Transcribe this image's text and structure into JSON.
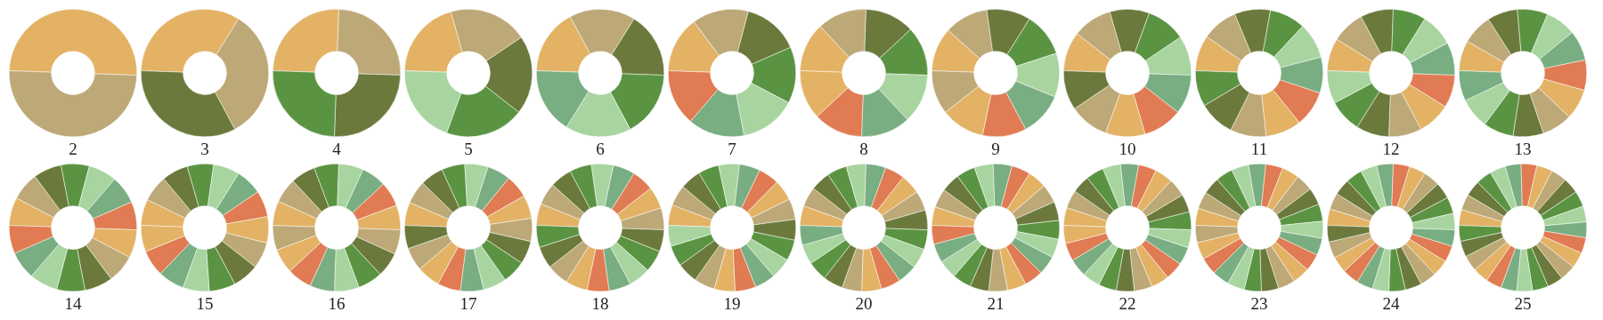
{
  "chart_data": [
    {
      "type": "donut",
      "title": "2",
      "categories": [
        null,
        null
      ],
      "values": [
        50,
        50
      ],
      "colors": [
        "#e3b264",
        "#bda877"
      ]
    },
    {
      "type": "donut",
      "title": "3",
      "categories": [
        null,
        null,
        null
      ],
      "values": [
        33.33,
        33.33,
        33.33
      ],
      "colors": [
        "#e3b264",
        "#bda877",
        "#6b7a3c"
      ]
    },
    {
      "type": "donut",
      "title": "4",
      "categories": [
        null,
        null,
        null,
        null
      ],
      "values": [
        25,
        25,
        25,
        25
      ],
      "colors": [
        "#e3b264",
        "#bda877",
        "#6b7a3c",
        "#5a9442"
      ]
    },
    {
      "type": "donut",
      "title": "5",
      "categories": [
        null,
        null,
        null,
        null,
        null
      ],
      "values": [
        20,
        20,
        20,
        20,
        20
      ],
      "colors": [
        "#e3b264",
        "#bda877",
        "#6b7a3c",
        "#5a9442",
        "#a8d4a0"
      ]
    },
    {
      "type": "donut",
      "title": "6",
      "categories": [
        null,
        null,
        null,
        null,
        null,
        null
      ],
      "values": [
        16.67,
        16.67,
        16.67,
        16.67,
        16.67,
        16.67
      ],
      "colors": [
        "#e3b264",
        "#bda877",
        "#6b7a3c",
        "#5a9442",
        "#a8d4a0",
        "#78ae82"
      ]
    },
    {
      "type": "donut",
      "title": "7",
      "categories": [
        null,
        null,
        null,
        null,
        null,
        null,
        null
      ],
      "values": [
        14.29,
        14.29,
        14.29,
        14.29,
        14.29,
        14.29,
        14.29
      ],
      "colors": [
        "#e3b264",
        "#bda877",
        "#6b7a3c",
        "#5a9442",
        "#a8d4a0",
        "#78ae82",
        "#e07b53"
      ]
    },
    {
      "type": "donut",
      "title": "8",
      "categories": [
        null,
        null,
        null,
        null,
        null,
        null,
        null,
        null
      ],
      "values": [
        12.5,
        12.5,
        12.5,
        12.5,
        12.5,
        12.5,
        12.5,
        12.5
      ],
      "colors": [
        "#e3b264",
        "#bda877",
        "#6b7a3c",
        "#5a9442",
        "#a8d4a0",
        "#78ae82",
        "#e07b53",
        "#e3b264"
      ]
    },
    {
      "type": "donut",
      "title": "9",
      "categories": [
        null,
        null,
        null,
        null,
        null,
        null,
        null,
        null,
        null
      ],
      "values": [
        11.11,
        11.11,
        11.11,
        11.11,
        11.11,
        11.11,
        11.11,
        11.11,
        11.11
      ],
      "colors": [
        "#e3b264",
        "#bda877",
        "#6b7a3c",
        "#5a9442",
        "#a8d4a0",
        "#78ae82",
        "#e07b53",
        "#e3b264",
        "#bda877"
      ]
    },
    {
      "type": "donut",
      "title": "10",
      "categories": [
        null,
        null,
        null,
        null,
        null,
        null,
        null,
        null,
        null,
        null
      ],
      "values": [
        10,
        10,
        10,
        10,
        10,
        10,
        10,
        10,
        10,
        10
      ],
      "colors": [
        "#e3b264",
        "#bda877",
        "#6b7a3c",
        "#5a9442",
        "#a8d4a0",
        "#78ae82",
        "#e07b53",
        "#e3b264",
        "#bda877",
        "#6b7a3c"
      ]
    },
    {
      "type": "donut",
      "title": "11",
      "categories": [
        null,
        null,
        null,
        null,
        null,
        null,
        null,
        null,
        null,
        null,
        null
      ],
      "values": [
        9.09,
        9.09,
        9.09,
        9.09,
        9.09,
        9.09,
        9.09,
        9.09,
        9.09,
        9.09,
        9.09
      ],
      "colors": [
        "#e3b264",
        "#bda877",
        "#6b7a3c",
        "#5a9442",
        "#a8d4a0",
        "#78ae82",
        "#e07b53",
        "#e3b264",
        "#bda877",
        "#6b7a3c",
        "#5a9442"
      ]
    },
    {
      "type": "donut",
      "title": "12",
      "categories": [
        null,
        null,
        null,
        null,
        null,
        null,
        null,
        null,
        null,
        null,
        null,
        null
      ],
      "values": [
        8.33,
        8.33,
        8.33,
        8.33,
        8.33,
        8.33,
        8.33,
        8.33,
        8.33,
        8.33,
        8.33,
        8.33
      ],
      "colors": [
        "#e3b264",
        "#bda877",
        "#6b7a3c",
        "#5a9442",
        "#a8d4a0",
        "#78ae82",
        "#e07b53",
        "#e3b264",
        "#bda877",
        "#6b7a3c",
        "#5a9442",
        "#a8d4a0"
      ]
    },
    {
      "type": "donut",
      "title": "13",
      "categories": [
        null,
        null,
        null,
        null,
        null,
        null,
        null,
        null,
        null,
        null,
        null,
        null,
        null
      ],
      "values": [
        7.69,
        7.69,
        7.69,
        7.69,
        7.69,
        7.69,
        7.69,
        7.69,
        7.69,
        7.69,
        7.69,
        7.69,
        7.69
      ],
      "colors": [
        "#e3b264",
        "#bda877",
        "#6b7a3c",
        "#5a9442",
        "#a8d4a0",
        "#78ae82",
        "#e07b53",
        "#e3b264",
        "#bda877",
        "#6b7a3c",
        "#5a9442",
        "#a8d4a0",
        "#78ae82"
      ]
    },
    {
      "type": "donut",
      "title": "14",
      "categories": [
        null,
        null,
        null,
        null,
        null,
        null,
        null,
        null,
        null,
        null,
        null,
        null,
        null,
        null
      ],
      "values": [
        7.14,
        7.14,
        7.14,
        7.14,
        7.14,
        7.14,
        7.14,
        7.14,
        7.14,
        7.14,
        7.14,
        7.14,
        7.14,
        7.14
      ],
      "colors": [
        "#e3b264",
        "#bda877",
        "#6b7a3c",
        "#5a9442",
        "#a8d4a0",
        "#78ae82",
        "#e07b53",
        "#e3b264",
        "#bda877",
        "#6b7a3c",
        "#5a9442",
        "#a8d4a0",
        "#78ae82",
        "#e07b53"
      ]
    },
    {
      "type": "donut",
      "title": "15",
      "categories": [
        null,
        null,
        null,
        null,
        null,
        null,
        null,
        null,
        null,
        null,
        null,
        null,
        null,
        null,
        null
      ],
      "values": [
        6.67,
        6.67,
        6.67,
        6.67,
        6.67,
        6.67,
        6.67,
        6.67,
        6.67,
        6.67,
        6.67,
        6.67,
        6.67,
        6.67,
        6.67
      ],
      "colors": [
        "#e3b264",
        "#bda877",
        "#6b7a3c",
        "#5a9442",
        "#a8d4a0",
        "#78ae82",
        "#e07b53",
        "#e3b264",
        "#bda877",
        "#6b7a3c",
        "#5a9442",
        "#a8d4a0",
        "#78ae82",
        "#e07b53",
        "#e3b264"
      ]
    },
    {
      "type": "donut",
      "title": "16",
      "categories": [
        null,
        null,
        null,
        null,
        null,
        null,
        null,
        null,
        null,
        null,
        null,
        null,
        null,
        null,
        null,
        null
      ],
      "values": [
        6.25,
        6.25,
        6.25,
        6.25,
        6.25,
        6.25,
        6.25,
        6.25,
        6.25,
        6.25,
        6.25,
        6.25,
        6.25,
        6.25,
        6.25,
        6.25
      ],
      "colors": [
        "#e3b264",
        "#bda877",
        "#6b7a3c",
        "#5a9442",
        "#a8d4a0",
        "#78ae82",
        "#e07b53",
        "#e3b264",
        "#bda877",
        "#6b7a3c",
        "#5a9442",
        "#a8d4a0",
        "#78ae82",
        "#e07b53",
        "#e3b264",
        "#bda877"
      ]
    },
    {
      "type": "donut",
      "title": "17",
      "categories": [
        null,
        null,
        null,
        null,
        null,
        null,
        null,
        null,
        null,
        null,
        null,
        null,
        null,
        null,
        null,
        null,
        null
      ],
      "values": [
        5.88,
        5.88,
        5.88,
        5.88,
        5.88,
        5.88,
        5.88,
        5.88,
        5.88,
        5.88,
        5.88,
        5.88,
        5.88,
        5.88,
        5.88,
        5.88,
        5.88
      ],
      "colors": [
        "#e3b264",
        "#bda877",
        "#6b7a3c",
        "#5a9442",
        "#a8d4a0",
        "#78ae82",
        "#e07b53",
        "#e3b264",
        "#bda877",
        "#6b7a3c",
        "#5a9442",
        "#a8d4a0",
        "#78ae82",
        "#e07b53",
        "#e3b264",
        "#bda877",
        "#6b7a3c"
      ]
    },
    {
      "type": "donut",
      "title": "18",
      "categories": [
        null,
        null,
        null,
        null,
        null,
        null,
        null,
        null,
        null,
        null,
        null,
        null,
        null,
        null,
        null,
        null,
        null,
        null
      ],
      "values": [
        5.56,
        5.56,
        5.56,
        5.56,
        5.56,
        5.56,
        5.56,
        5.56,
        5.56,
        5.56,
        5.56,
        5.56,
        5.56,
        5.56,
        5.56,
        5.56,
        5.56,
        5.56
      ],
      "colors": [
        "#e3b264",
        "#bda877",
        "#6b7a3c",
        "#5a9442",
        "#a8d4a0",
        "#78ae82",
        "#e07b53",
        "#e3b264",
        "#bda877",
        "#6b7a3c",
        "#5a9442",
        "#a8d4a0",
        "#78ae82",
        "#e07b53",
        "#e3b264",
        "#bda877",
        "#6b7a3c",
        "#5a9442"
      ]
    },
    {
      "type": "donut",
      "title": "19",
      "categories": [
        null,
        null,
        null,
        null,
        null,
        null,
        null,
        null,
        null,
        null,
        null,
        null,
        null,
        null,
        null,
        null,
        null,
        null,
        null
      ],
      "values": [
        5.26,
        5.26,
        5.26,
        5.26,
        5.26,
        5.26,
        5.26,
        5.26,
        5.26,
        5.26,
        5.26,
        5.26,
        5.26,
        5.26,
        5.26,
        5.26,
        5.26,
        5.26,
        5.26
      ],
      "colors": [
        "#e3b264",
        "#bda877",
        "#6b7a3c",
        "#5a9442",
        "#a8d4a0",
        "#78ae82",
        "#e07b53",
        "#e3b264",
        "#bda877",
        "#6b7a3c",
        "#5a9442",
        "#a8d4a0",
        "#78ae82",
        "#e07b53",
        "#e3b264",
        "#bda877",
        "#6b7a3c",
        "#5a9442",
        "#a8d4a0"
      ]
    },
    {
      "type": "donut",
      "title": "20",
      "categories": [
        null,
        null,
        null,
        null,
        null,
        null,
        null,
        null,
        null,
        null,
        null,
        null,
        null,
        null,
        null,
        null,
        null,
        null,
        null,
        null
      ],
      "values": [
        5,
        5,
        5,
        5,
        5,
        5,
        5,
        5,
        5,
        5,
        5,
        5,
        5,
        5,
        5,
        5,
        5,
        5,
        5,
        5
      ],
      "colors": [
        "#e3b264",
        "#bda877",
        "#6b7a3c",
        "#5a9442",
        "#a8d4a0",
        "#78ae82",
        "#e07b53",
        "#e3b264",
        "#bda877",
        "#6b7a3c",
        "#5a9442",
        "#a8d4a0",
        "#78ae82",
        "#e07b53",
        "#e3b264",
        "#bda877",
        "#6b7a3c",
        "#5a9442",
        "#a8d4a0",
        "#78ae82"
      ]
    },
    {
      "type": "donut",
      "title": "21",
      "categories": [
        null,
        null,
        null,
        null,
        null,
        null,
        null,
        null,
        null,
        null,
        null,
        null,
        null,
        null,
        null,
        null,
        null,
        null,
        null,
        null,
        null
      ],
      "values": [
        4.76,
        4.76,
        4.76,
        4.76,
        4.76,
        4.76,
        4.76,
        4.76,
        4.76,
        4.76,
        4.76,
        4.76,
        4.76,
        4.76,
        4.76,
        4.76,
        4.76,
        4.76,
        4.76,
        4.76,
        4.76
      ],
      "colors": [
        "#e3b264",
        "#bda877",
        "#6b7a3c",
        "#5a9442",
        "#a8d4a0",
        "#78ae82",
        "#e07b53",
        "#e3b264",
        "#bda877",
        "#6b7a3c",
        "#5a9442",
        "#a8d4a0",
        "#78ae82",
        "#e07b53",
        "#e3b264",
        "#bda877",
        "#6b7a3c",
        "#5a9442",
        "#a8d4a0",
        "#78ae82",
        "#e07b53"
      ]
    },
    {
      "type": "donut",
      "title": "22",
      "categories": [
        null,
        null,
        null,
        null,
        null,
        null,
        null,
        null,
        null,
        null,
        null,
        null,
        null,
        null,
        null,
        null,
        null,
        null,
        null,
        null,
        null,
        null
      ],
      "values": [
        4.55,
        4.55,
        4.55,
        4.55,
        4.55,
        4.55,
        4.55,
        4.55,
        4.55,
        4.55,
        4.55,
        4.55,
        4.55,
        4.55,
        4.55,
        4.55,
        4.55,
        4.55,
        4.55,
        4.55,
        4.55,
        4.55
      ],
      "colors": [
        "#e3b264",
        "#bda877",
        "#6b7a3c",
        "#5a9442",
        "#a8d4a0",
        "#78ae82",
        "#e07b53",
        "#e3b264",
        "#bda877",
        "#6b7a3c",
        "#5a9442",
        "#a8d4a0",
        "#78ae82",
        "#e07b53",
        "#e3b264",
        "#bda877",
        "#6b7a3c",
        "#5a9442",
        "#a8d4a0",
        "#78ae82",
        "#e07b53",
        "#e3b264"
      ]
    },
    {
      "type": "donut",
      "title": "23",
      "categories": [
        null,
        null,
        null,
        null,
        null,
        null,
        null,
        null,
        null,
        null,
        null,
        null,
        null,
        null,
        null,
        null,
        null,
        null,
        null,
        null,
        null,
        null,
        null
      ],
      "values": [
        4.35,
        4.35,
        4.35,
        4.35,
        4.35,
        4.35,
        4.35,
        4.35,
        4.35,
        4.35,
        4.35,
        4.35,
        4.35,
        4.35,
        4.35,
        4.35,
        4.35,
        4.35,
        4.35,
        4.35,
        4.35,
        4.35,
        4.35
      ],
      "colors": [
        "#e3b264",
        "#bda877",
        "#6b7a3c",
        "#5a9442",
        "#a8d4a0",
        "#78ae82",
        "#e07b53",
        "#e3b264",
        "#bda877",
        "#6b7a3c",
        "#5a9442",
        "#a8d4a0",
        "#78ae82",
        "#e07b53",
        "#e3b264",
        "#bda877",
        "#6b7a3c",
        "#5a9442",
        "#a8d4a0",
        "#78ae82",
        "#e07b53",
        "#e3b264",
        "#bda877"
      ]
    },
    {
      "type": "donut",
      "title": "24",
      "categories": [
        null,
        null,
        null,
        null,
        null,
        null,
        null,
        null,
        null,
        null,
        null,
        null,
        null,
        null,
        null,
        null,
        null,
        null,
        null,
        null,
        null,
        null,
        null,
        null
      ],
      "values": [
        4.17,
        4.17,
        4.17,
        4.17,
        4.17,
        4.17,
        4.17,
        4.17,
        4.17,
        4.17,
        4.17,
        4.17,
        4.17,
        4.17,
        4.17,
        4.17,
        4.17,
        4.17,
        4.17,
        4.17,
        4.17,
        4.17,
        4.17,
        4.17
      ],
      "colors": [
        "#e3b264",
        "#bda877",
        "#6b7a3c",
        "#5a9442",
        "#a8d4a0",
        "#78ae82",
        "#e07b53",
        "#e3b264",
        "#bda877",
        "#6b7a3c",
        "#5a9442",
        "#a8d4a0",
        "#78ae82",
        "#e07b53",
        "#e3b264",
        "#bda877",
        "#6b7a3c",
        "#5a9442",
        "#a8d4a0",
        "#78ae82",
        "#e07b53",
        "#e3b264",
        "#bda877",
        "#6b7a3c"
      ]
    },
    {
      "type": "donut",
      "title": "25",
      "categories": [
        null,
        null,
        null,
        null,
        null,
        null,
        null,
        null,
        null,
        null,
        null,
        null,
        null,
        null,
        null,
        null,
        null,
        null,
        null,
        null,
        null,
        null,
        null,
        null,
        null
      ],
      "values": [
        4,
        4,
        4,
        4,
        4,
        4,
        4,
        4,
        4,
        4,
        4,
        4,
        4,
        4,
        4,
        4,
        4,
        4,
        4,
        4,
        4,
        4,
        4,
        4,
        4
      ],
      "colors": [
        "#e3b264",
        "#bda877",
        "#6b7a3c",
        "#5a9442",
        "#a8d4a0",
        "#78ae82",
        "#e07b53",
        "#e3b264",
        "#bda877",
        "#6b7a3c",
        "#5a9442",
        "#a8d4a0",
        "#78ae82",
        "#e07b53",
        "#e3b264",
        "#bda877",
        "#6b7a3c",
        "#5a9442",
        "#a8d4a0",
        "#78ae82",
        "#e07b53",
        "#e3b264",
        "#bda877",
        "#6b7a3c",
        "#5a9442"
      ]
    }
  ]
}
